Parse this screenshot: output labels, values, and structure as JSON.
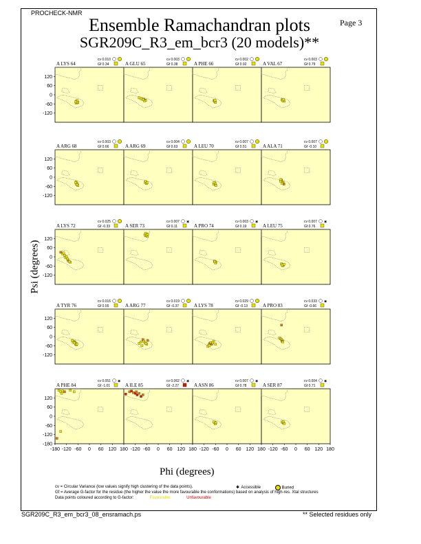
{
  "header": {
    "program": "PROCHECK-NMR",
    "page": "Page  3",
    "title_line1": "Ensemble Ramachandran plots",
    "title_line2": "SGR209C_R3_em_bcr3 (20 models)**"
  },
  "footer": {
    "file": "SGR209C_R3_em_bcr3_08_ensramach.ps",
    "note": "** Selected residues only"
  },
  "legend": {
    "cv_text": "cv = Circular Variance (low values signify high clustering of the data points).",
    "gf_text": "Gf = Average G-factor for the residue (the higher the value the more favourable the conformations) based on analysis of high-res. Xtal structures",
    "colour_text": "Data points coloured according to G-factor:",
    "favourable": "Favourable",
    "unfavourable": "Unfavourable",
    "accessible": "Accessible",
    "buried": "Buried"
  },
  "colors": {
    "panel_bg": "#ffffc0",
    "region_dots": "#7a7a7a",
    "point_fav": "#e8e000",
    "point_mid": "#e07a10",
    "point_unfav": "#cc2200",
    "favourable_text": "#e8e000",
    "unfavourable_text": "#dd0000"
  },
  "chart_data": {
    "type": "scatter",
    "xlabel": "Phi (degrees)",
    "ylabel": "Psi (degrees)",
    "xlim": [
      -180,
      180
    ],
    "ylim": [
      -180,
      180
    ],
    "x_ticks": [
      "-180",
      "-120",
      "-60",
      "0",
      "60",
      "120",
      "180"
    ],
    "y_ticks": [
      "120",
      "60",
      "0",
      "-60",
      "-120"
    ],
    "y_ticks_bottom": [
      "120",
      "60",
      "0",
      "-60",
      "-120",
      "-180"
    ],
    "panels": [
      {
        "label": "A LYS 64",
        "cv": "cv 0.010",
        "gf": "Gf 0.34",
        "gfcolor": "y",
        "access": "buried",
        "points": [
          [
            -68,
            -45
          ],
          [
            -62,
            -52
          ],
          [
            -65,
            -40
          ],
          [
            -70,
            -55
          ],
          [
            -60,
            -48
          ],
          [
            -66,
            -50
          ],
          [
            -64,
            -38
          ],
          [
            -72,
            -46
          ]
        ]
      },
      {
        "label": "A GLU 65",
        "cv": "cv 0.003",
        "gf": "Gf 0.38",
        "gfcolor": "y",
        "access": "buried",
        "points": [
          [
            -75,
            -30
          ],
          [
            -70,
            -35
          ],
          [
            -80,
            -28
          ],
          [
            -66,
            -38
          ],
          [
            -90,
            -25
          ],
          [
            -100,
            -20
          ],
          [
            -72,
            -40
          ],
          [
            -78,
            -32
          ]
        ]
      },
      {
        "label": "A PHE 66",
        "cv": "cv 0.002",
        "gf": "Gf 0.92",
        "gfcolor": "y",
        "access": "buried",
        "points": [
          [
            -65,
            -40
          ],
          [
            -62,
            -45
          ],
          [
            -68,
            -38
          ],
          [
            -60,
            -50
          ],
          [
            -66,
            -42
          ],
          [
            -63,
            -36
          ]
        ]
      },
      {
        "label": "A VAL 67",
        "cv": "cv 0.003",
        "gf": "Gf 0.79",
        "gfcolor": "y",
        "access": "buried",
        "points": [
          [
            -68,
            -35
          ],
          [
            -64,
            -40
          ],
          [
            -72,
            -32
          ],
          [
            -60,
            -42
          ],
          [
            -70,
            -38
          ],
          [
            -66,
            -30
          ]
        ]
      },
      {
        "label": "A ARG 68",
        "cv": "cv 0.003",
        "gf": "Gf 0.66",
        "gfcolor": "y",
        "access": "buried",
        "points": [
          [
            -70,
            -30
          ],
          [
            -66,
            -40
          ],
          [
            -62,
            -50
          ],
          [
            -68,
            -45
          ],
          [
            -60,
            -55
          ],
          [
            -72,
            -35
          ],
          [
            -64,
            -48
          ]
        ]
      },
      {
        "label": "A ARG 69",
        "cv": "cv 0.004",
        "gf": "Gf 0.63",
        "gfcolor": "y",
        "access": "buried",
        "points": [
          [
            -65,
            -30
          ],
          [
            -60,
            -38
          ],
          [
            -68,
            -35
          ],
          [
            -62,
            -42
          ],
          [
            -66,
            -28
          ],
          [
            -58,
            -36
          ]
        ]
      },
      {
        "label": "A LEU 70",
        "cv": "cv 0.007",
        "gf": "Gf 0.51",
        "gfcolor": "y",
        "access": "buried",
        "points": [
          [
            -65,
            -38
          ],
          [
            -70,
            -45
          ],
          [
            -60,
            -50
          ],
          [
            -62,
            -42
          ],
          [
            -68,
            -35
          ],
          [
            -58,
            -55
          ]
        ]
      },
      {
        "label": "A ALA 71",
        "cv": "cv 0.007",
        "gf": "Gf -0.10",
        "gfcolor": "y",
        "access": "buried",
        "points": [
          [
            -75,
            -20
          ],
          [
            -70,
            -30
          ],
          [
            -80,
            -25
          ],
          [
            -66,
            -35
          ],
          [
            -72,
            -40
          ],
          [
            -62,
            -45
          ],
          [
            -78,
            -15
          ]
        ]
      },
      {
        "label": "A LYS 72",
        "cv": "cv 0.025",
        "gf": "Gf -0.33",
        "gfcolor": "y",
        "access": "buried",
        "points": [
          [
            -150,
            30
          ],
          [
            -140,
            20
          ],
          [
            -130,
            10
          ],
          [
            -125,
            -5
          ],
          [
            -115,
            -15
          ],
          [
            -110,
            -25
          ],
          [
            -100,
            -35
          ],
          [
            -120,
            0
          ],
          [
            -135,
            25
          ],
          [
            -105,
            -30
          ]
        ]
      },
      {
        "label": "A SER 73",
        "cv": "cv 0.007",
        "gf": "Gf 0.11",
        "gfcolor": "y",
        "access": "accessible",
        "points": [
          [
            -65,
            140
          ],
          [
            -60,
            150
          ],
          [
            -70,
            145
          ],
          [
            -58,
            135
          ],
          [
            -66,
            155
          ],
          [
            -62,
            142
          ],
          [
            -55,
            148
          ]
        ]
      },
      {
        "label": "A PRO 74",
        "cv": "cv 0.003",
        "gf": "Gf 0.19",
        "gfcolor": "y",
        "access": "accessible",
        "points": [
          [
            -62,
            -30
          ],
          [
            -58,
            -35
          ],
          [
            -66,
            -28
          ],
          [
            -60,
            -40
          ],
          [
            -64,
            -32
          ]
        ]
      },
      {
        "label": "A LEU 75",
        "cv": "cv 0.007",
        "gf": "Gf 0.76",
        "gfcolor": "y",
        "access": "accessible",
        "points": [
          [
            -70,
            -50
          ],
          [
            -65,
            -55
          ],
          [
            -75,
            -45
          ],
          [
            -68,
            -58
          ],
          [
            -72,
            -52
          ],
          [
            -62,
            -48
          ]
        ]
      },
      {
        "label": "A TYR 76",
        "cv": "cv 0.016",
        "gf": "Gf 0.55",
        "gfcolor": "y",
        "access": "buried",
        "points": [
          [
            -80,
            -30
          ],
          [
            -75,
            -40
          ],
          [
            -70,
            -45
          ],
          [
            -85,
            -35
          ],
          [
            -72,
            -50
          ],
          [
            -68,
            -55
          ],
          [
            -78,
            -42
          ],
          [
            -66,
            -48
          ],
          [
            -90,
            -25
          ]
        ]
      },
      {
        "label": "A ARG 77",
        "cv": "cv 0.019",
        "gf": "Gf -0.37",
        "gfcolor": "y",
        "access": "buried",
        "points": [
          [
            -80,
            -20
          ],
          [
            -75,
            -30
          ],
          [
            -70,
            -40
          ],
          [
            -90,
            -35
          ],
          [
            -60,
            -50
          ],
          [
            -55,
            -25
          ],
          [
            -85,
            -60
          ],
          [
            -100,
            -45
          ],
          [
            -65,
            -45
          ]
        ]
      },
      {
        "label": "A LYS 78",
        "cv": "cv 0.029",
        "gf": "Gf -0.13",
        "gfcolor": "y",
        "access": "buried",
        "points": [
          [
            -90,
            -45
          ],
          [
            -95,
            -55
          ],
          [
            -100,
            -65
          ],
          [
            -85,
            -40
          ],
          [
            -70,
            -30
          ],
          [
            -80,
            -50
          ],
          [
            -75,
            -40
          ],
          [
            -60,
            -50
          ],
          [
            -92,
            -60
          ]
        ]
      },
      {
        "label": "A PRO 83",
        "cv": "cv 0.033",
        "gf": "Gf -0.66",
        "gfcolor": "y",
        "access": "accessible",
        "points": [
          [
            -75,
            75
          ],
          [
            -85,
            -10
          ],
          [
            -80,
            -15
          ],
          [
            -75,
            -20
          ],
          [
            -70,
            -25
          ],
          [
            -72,
            -30
          ],
          [
            -68,
            -35
          ]
        ]
      },
      {
        "label": "A PHE 84",
        "cv": "cv 0.051",
        "gf": "Gf -1.01",
        "gfcolor": "y",
        "access": "accessible",
        "points": [
          [
            -170,
            -145
          ],
          [
            -150,
            -100
          ],
          [
            -160,
            170
          ],
          [
            -150,
            160
          ],
          [
            -140,
            165
          ],
          [
            -130,
            160
          ],
          [
            -145,
            150
          ],
          [
            -100,
            170
          ],
          [
            -80,
            160
          ]
        ]
      },
      {
        "label": "A ILE 85",
        "cv": "cv 0.062",
        "gf": "Gf -2.27",
        "gfcolor": "r",
        "access": "accessible",
        "points": [
          [
            -170,
            145
          ],
          [
            -150,
            160
          ],
          [
            -140,
            165
          ],
          [
            -130,
            155
          ],
          [
            -120,
            150
          ],
          [
            -115,
            160
          ],
          [
            -110,
            140
          ],
          [
            -100,
            150
          ],
          [
            -90,
            130
          ],
          [
            -80,
            140
          ]
        ]
      },
      {
        "label": "A ASN 86",
        "cv": "cv 0.007",
        "gf": "Gf 0.78",
        "gfcolor": "y",
        "access": "accessible",
        "points": [
          [
            -65,
            -40
          ],
          [
            -60,
            -45
          ],
          [
            -70,
            -38
          ],
          [
            -62,
            -50
          ],
          [
            -58,
            -42
          ]
        ]
      },
      {
        "label": "A SER 87",
        "cv": "cv 0.004",
        "gf": "Gf 0.71",
        "gfcolor": "y",
        "access": "accessible",
        "points": [
          [
            -68,
            -40
          ],
          [
            -64,
            -45
          ],
          [
            -72,
            -38
          ],
          [
            -60,
            -48
          ],
          [
            -66,
            -35
          ]
        ]
      }
    ]
  }
}
